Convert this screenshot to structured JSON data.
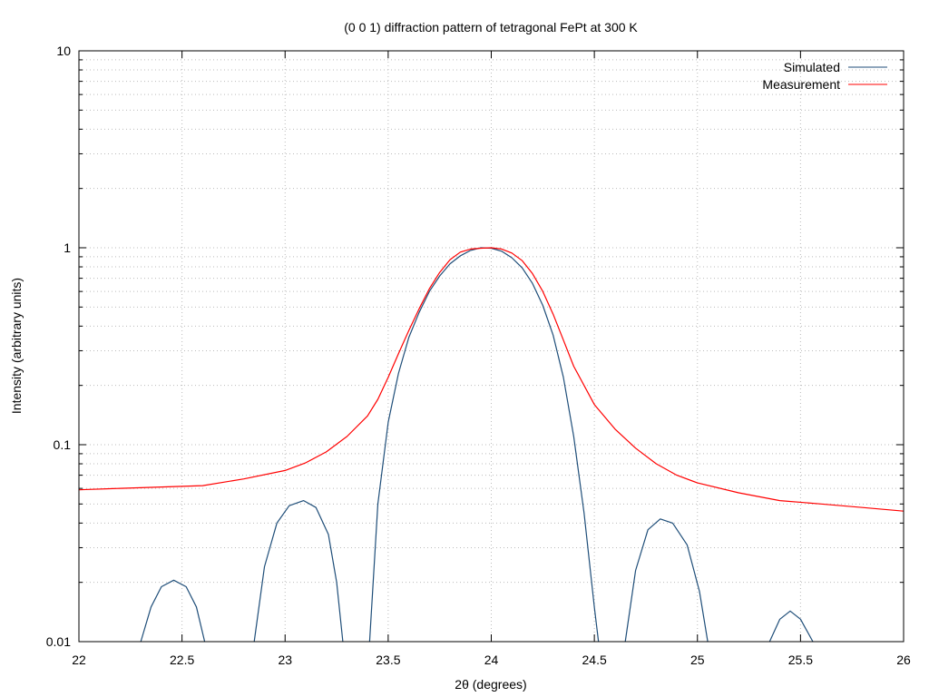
{
  "chart_data": {
    "type": "line",
    "title": "(0 0 1) diffraction pattern of tetragonal FePt at 300 K",
    "xlabel": "2θ (degrees)",
    "ylabel": "Intensity (arbitrary units)",
    "xlim": [
      22,
      26
    ],
    "ylim": [
      0.01,
      10
    ],
    "yscale": "log",
    "grid": true,
    "legend_position": "top-right",
    "x_ticks": [
      "22",
      "22.5",
      "23",
      "23.5",
      "24",
      "24.5",
      "25",
      "25.5",
      "26"
    ],
    "y_ticks": [
      "0.01",
      "0.1",
      "1",
      "10"
    ],
    "series": [
      {
        "name": "Simulated",
        "color": "#1f4e79",
        "segments": [
          {
            "x": [
              22.3,
              22.35,
              22.4,
              22.46,
              22.52,
              22.57,
              22.61
            ],
            "y": [
              0.01,
              0.015,
              0.019,
              0.0205,
              0.019,
              0.015,
              0.01
            ]
          },
          {
            "x": [
              22.85,
              22.9,
              22.96,
              23.02,
              23.09,
              23.15,
              23.21,
              23.25,
              23.28
            ],
            "y": [
              0.01,
              0.024,
              0.04,
              0.049,
              0.052,
              0.048,
              0.035,
              0.02,
              0.01
            ]
          },
          {
            "x": [
              23.41,
              23.45,
              23.5,
              23.55,
              23.6,
              23.65,
              23.7,
              23.75,
              23.8,
              23.85,
              23.9,
              23.95,
              24.0,
              24.05,
              24.1,
              24.15,
              24.2,
              24.25,
              24.3,
              24.35,
              24.4,
              24.45,
              24.5,
              24.52
            ],
            "y": [
              0.01,
              0.05,
              0.13,
              0.23,
              0.35,
              0.47,
              0.6,
              0.72,
              0.83,
              0.91,
              0.97,
              1.0,
              0.995,
              0.96,
              0.89,
              0.79,
              0.66,
              0.51,
              0.36,
              0.22,
              0.11,
              0.045,
              0.015,
              0.01
            ]
          },
          {
            "x": [
              24.65,
              24.7,
              24.76,
              24.82,
              24.88,
              24.95,
              25.01,
              25.05
            ],
            "y": [
              0.01,
              0.023,
              0.037,
              0.042,
              0.04,
              0.031,
              0.018,
              0.01
            ]
          },
          {
            "x": [
              25.35,
              25.4,
              25.45,
              25.5,
              25.56
            ],
            "y": [
              0.01,
              0.013,
              0.0143,
              0.013,
              0.01
            ]
          }
        ]
      },
      {
        "name": "Measurement",
        "color": "#ff0000",
        "x": [
          22.0,
          22.2,
          22.4,
          22.6,
          22.8,
          23.0,
          23.1,
          23.2,
          23.3,
          23.4,
          23.45,
          23.5,
          23.55,
          23.6,
          23.65,
          23.7,
          23.75,
          23.8,
          23.85,
          23.9,
          23.95,
          24.0,
          24.05,
          24.1,
          24.15,
          24.2,
          24.25,
          24.3,
          24.35,
          24.4,
          24.5,
          24.6,
          24.7,
          24.8,
          24.9,
          25.0,
          25.2,
          25.4,
          25.6,
          25.8,
          26.0
        ],
        "y": [
          0.059,
          0.06,
          0.061,
          0.062,
          0.067,
          0.074,
          0.081,
          0.092,
          0.11,
          0.14,
          0.17,
          0.22,
          0.29,
          0.38,
          0.49,
          0.62,
          0.75,
          0.87,
          0.95,
          0.985,
          0.995,
          1.0,
          0.985,
          0.94,
          0.86,
          0.74,
          0.6,
          0.46,
          0.34,
          0.25,
          0.16,
          0.12,
          0.096,
          0.08,
          0.07,
          0.064,
          0.057,
          0.052,
          0.05,
          0.048,
          0.046
        ]
      }
    ]
  }
}
